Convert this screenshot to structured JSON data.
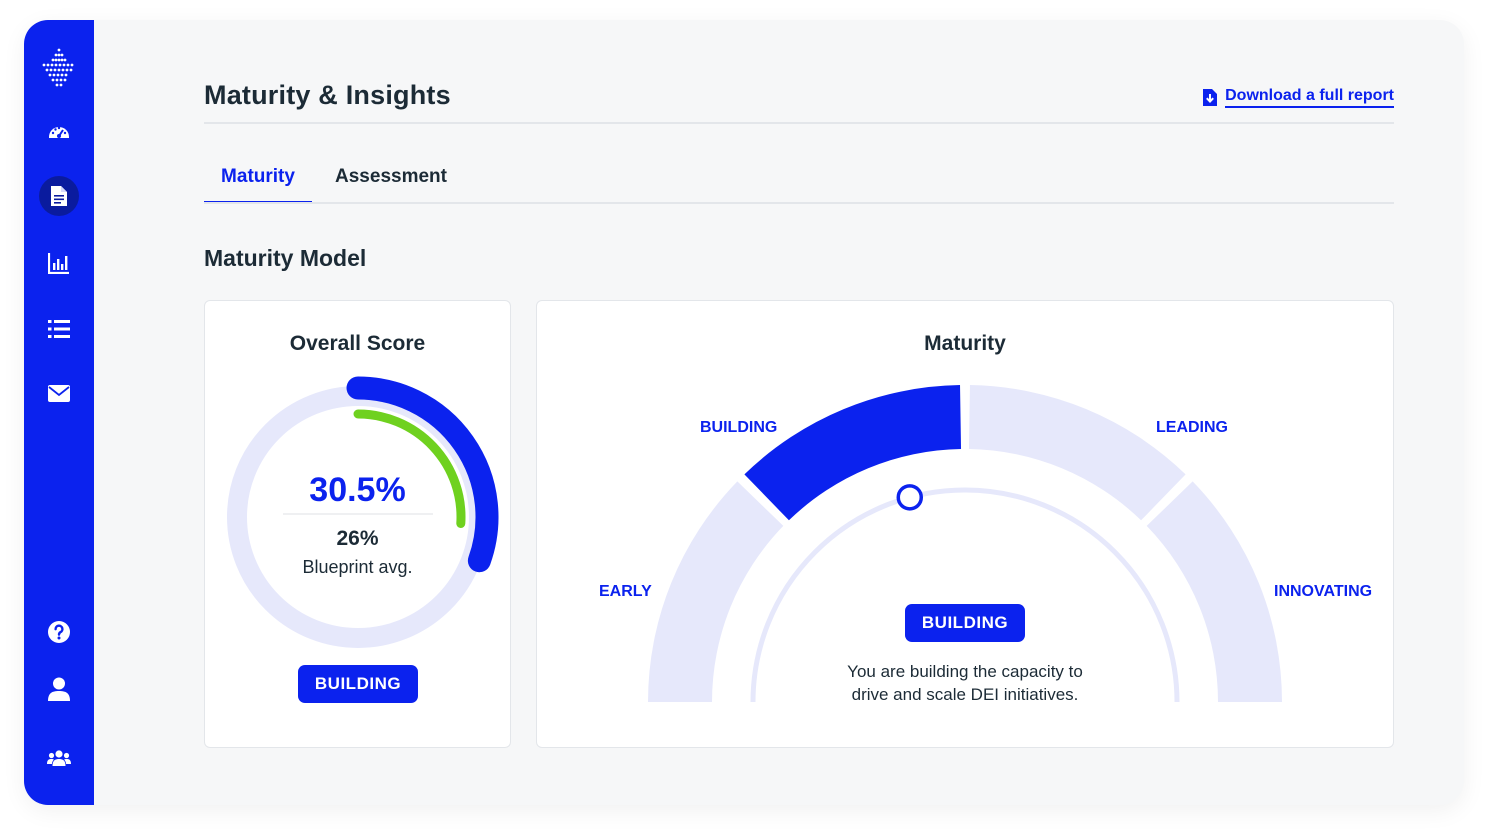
{
  "app": {
    "page_title": "Maturity & Insights",
    "download_link": "Download a full report"
  },
  "colors": {
    "primary": "#0b22ee",
    "nav_active": "#0a1b9e",
    "benchmark": "#6fd11f",
    "track": "#e6e8fb"
  },
  "sidebar": {
    "items": [
      {
        "icon": "dots-logo-icon"
      },
      {
        "icon": "dashboard-gauge-icon"
      },
      {
        "icon": "document-icon",
        "active": true
      },
      {
        "icon": "bar-chart-icon"
      },
      {
        "icon": "list-icon"
      },
      {
        "icon": "mail-icon"
      },
      {
        "icon": "help-icon"
      },
      {
        "icon": "user-icon"
      },
      {
        "icon": "team-icon"
      }
    ]
  },
  "tabs": [
    {
      "label": "Maturity",
      "active": true
    },
    {
      "label": "Assessment",
      "active": false
    }
  ],
  "section_title": "Maturity Model",
  "overall_score": {
    "title": "Overall Score",
    "score_label": "30.5%",
    "score_value": 30.5,
    "benchmark_label": "26%",
    "benchmark_value": 26,
    "benchmark_caption": "Blueprint avg.",
    "level_badge": "BUILDING"
  },
  "maturity": {
    "title": "Maturity",
    "stages": [
      {
        "label": "EARLY",
        "active": false
      },
      {
        "label": "BUILDING",
        "active": true
      },
      {
        "label": "LEADING",
        "active": false
      },
      {
        "label": "INNOVATING",
        "active": false
      }
    ],
    "current_badge": "BUILDING",
    "description_line1": "You are building the capacity to",
    "description_line2": "drive and scale DEI initiatives."
  }
}
